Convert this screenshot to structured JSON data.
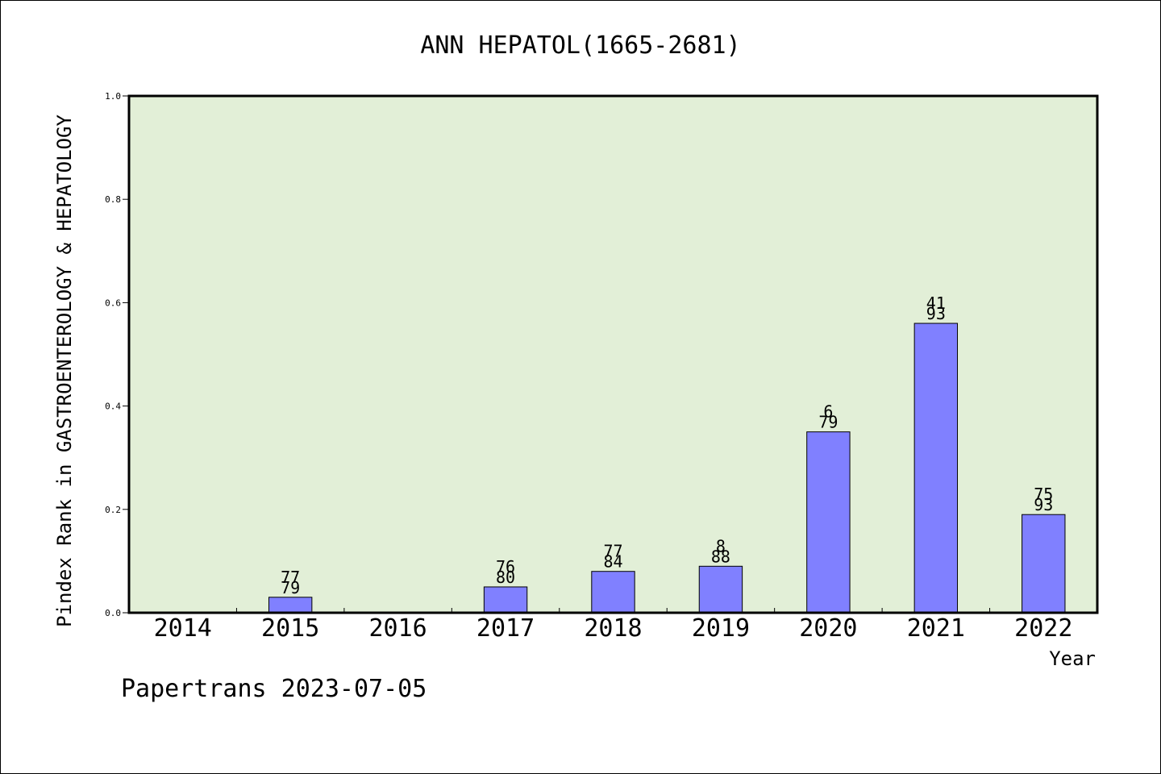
{
  "chart_data": {
    "type": "bar",
    "title": "ANN HEPATOL(1665-2681)",
    "xlabel": "Year",
    "ylabel": "Pindex Rank in GASTROENTEROLOGY & HEPATOLOGY",
    "ylim": [
      0,
      1.0
    ],
    "yticks": [
      "0.0",
      "0.2",
      "0.4",
      "0.6",
      "0.8",
      "1.0"
    ],
    "categories": [
      "2014",
      "2015",
      "2016",
      "2017",
      "2018",
      "2019",
      "2020",
      "2021",
      "2022"
    ],
    "values": [
      null,
      0.03,
      null,
      0.05,
      0.08,
      0.09,
      0.35,
      0.56,
      0.19
    ],
    "labels_top": [
      null,
      "77",
      null,
      "76",
      "77",
      "8",
      "6",
      "41",
      "75"
    ],
    "labels_bottom": [
      null,
      "79",
      null,
      "80",
      "84",
      "88",
      "79",
      "93",
      "93"
    ],
    "grid": false,
    "colors": {
      "bar": "#8080ff",
      "plot_background": "#e2efd7",
      "axes": "#000000"
    }
  },
  "footer": "Papertrans 2023-07-05"
}
